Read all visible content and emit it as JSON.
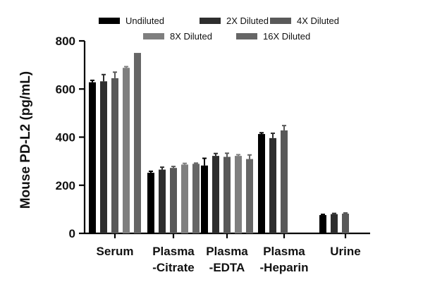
{
  "chart_data": {
    "type": "bar",
    "title": "",
    "xlabel": "",
    "ylabel": "Mouse PD-L2 (pg/mL)",
    "ylim": [
      0,
      800
    ],
    "yticks": [
      0,
      200,
      400,
      600,
      800
    ],
    "grid": false,
    "legend_position": "top",
    "categories": [
      {
        "lines": [
          "Serum"
        ]
      },
      {
        "lines": [
          "Plasma",
          "-Citrate"
        ]
      },
      {
        "lines": [
          "Plasma",
          "-EDTA"
        ]
      },
      {
        "lines": [
          "Plasma",
          "-Heparin"
        ]
      },
      {
        "lines": [
          "Urine"
        ]
      }
    ],
    "series": [
      {
        "name": "Undiluted",
        "color": "#000000",
        "values": [
          628,
          252,
          282,
          413,
          76
        ],
        "errors": [
          8,
          6,
          30,
          5,
          3
        ]
      },
      {
        "name": "2X Diluted",
        "color": "#2e2e2e",
        "values": [
          632,
          265,
          322,
          396,
          80
        ],
        "errors": [
          28,
          10,
          10,
          20,
          3
        ]
      },
      {
        "name": "4X Diluted",
        "color": "#595959",
        "values": [
          645,
          272,
          318,
          428,
          82
        ],
        "errors": [
          25,
          6,
          15,
          20,
          3
        ]
      },
      {
        "name": "8X Diluted",
        "color": "#7f7f7f",
        "values": [
          688,
          286,
          322,
          null,
          null
        ],
        "errors": [
          5,
          5,
          5,
          null,
          null
        ]
      },
      {
        "name": "16X Diluted",
        "color": "#666666",
        "values": [
          750,
          289,
          309,
          null,
          null
        ],
        "errors": [
          null,
          3,
          17,
          null,
          null
        ]
      }
    ]
  }
}
